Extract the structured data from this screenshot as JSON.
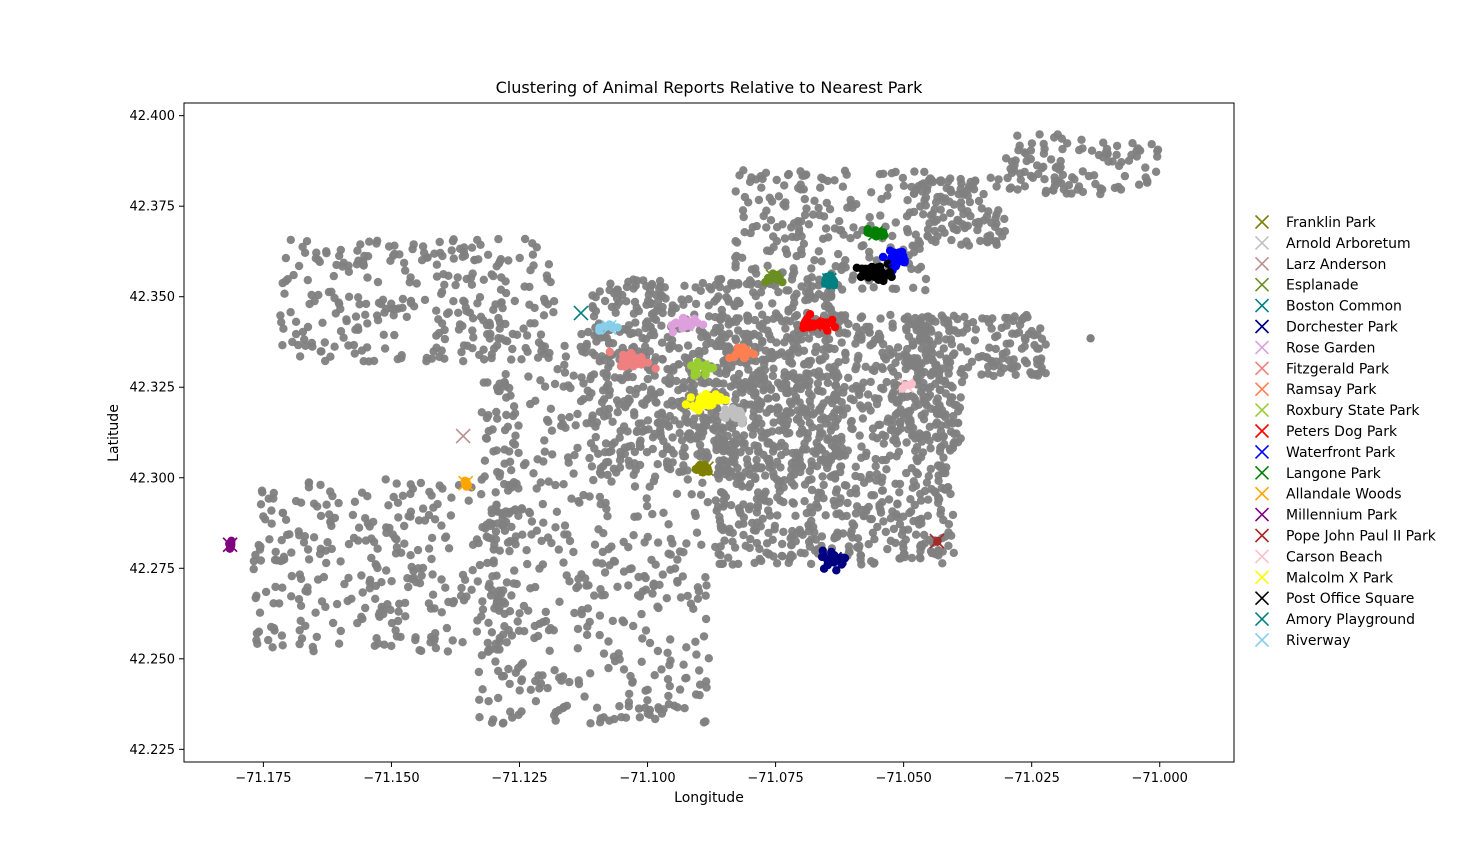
{
  "chart_data": {
    "type": "scatter",
    "title": "Clustering of Animal Reports Relative to Nearest Park",
    "xlabel": "Longitude",
    "ylabel": "Latitude",
    "xlim": [
      -71.1905,
      -70.9855
    ],
    "ylim": [
      42.2215,
      42.4035
    ],
    "xticks": [
      -71.175,
      -71.15,
      -71.125,
      -71.1,
      -71.075,
      -71.05,
      -71.025,
      -71.0
    ],
    "xtick_labels": [
      "−71.175",
      "−71.150",
      "−71.125",
      "−71.100",
      "−71.075",
      "−71.050",
      "−71.025",
      "−71.000"
    ],
    "yticks": [
      42.225,
      42.25,
      42.275,
      42.3,
      42.325,
      42.35,
      42.375,
      42.4
    ],
    "ytick_labels": [
      "42.225",
      "42.250",
      "42.275",
      "42.300",
      "42.325",
      "42.350",
      "42.375",
      "42.400"
    ],
    "grid": false,
    "legend_position": "right",
    "background_points": {
      "color": "#808080",
      "regions": [
        {
          "lon": [
            -71.172,
            -71.118
          ],
          "lat": [
            42.332,
            42.366
          ],
          "n": 280
        },
        {
          "lon": [
            -71.177,
            -71.125
          ],
          "lat": [
            42.252,
            42.3
          ],
          "n": 330
        },
        {
          "lon": [
            -71.133,
            -71.088
          ],
          "lat": [
            42.232,
            42.34
          ],
          "n": 560
        },
        {
          "lon": [
            -71.112,
            -71.062
          ],
          "lat": [
            42.3,
            42.355
          ],
          "n": 650
        },
        {
          "lon": [
            -71.087,
            -71.04
          ],
          "lat": [
            42.276,
            42.345
          ],
          "n": 900
        },
        {
          "lon": [
            -71.083,
            -71.045
          ],
          "lat": [
            42.35,
            42.385
          ],
          "n": 220
        },
        {
          "lon": [
            -71.05,
            -71.022
          ],
          "lat": [
            42.328,
            42.345
          ],
          "n": 160
        },
        {
          "lon": [
            -71.047,
            -71.03
          ],
          "lat": [
            42.364,
            42.383
          ],
          "n": 110
        },
        {
          "lon": [
            -71.03,
            -71.0
          ],
          "lat": [
            42.378,
            42.395
          ],
          "n": 110
        },
        {
          "lon": [
            -71.052,
            -71.038
          ],
          "lat": [
            42.308,
            42.327
          ],
          "n": 60
        }
      ]
    },
    "parks": [
      {
        "name": "Franklin Park",
        "color": "#808000",
        "lon": -71.0885,
        "lat": 42.3025,
        "spread": [
          0.002,
          0.0016
        ],
        "n": 10
      },
      {
        "name": "Arnold Arboretum",
        "color": "#c0c0c0",
        "lon": -71.0835,
        "lat": 42.3175,
        "spread": [
          0.0028,
          0.0022
        ],
        "n": 24
      },
      {
        "name": "Larz Anderson",
        "color": "#bc8f8f",
        "lon": -71.136,
        "lat": 42.3115,
        "spread": [
          0,
          0
        ],
        "n": 0
      },
      {
        "name": "Esplanade",
        "color": "#6b8e23",
        "lon": -71.0755,
        "lat": 42.3555,
        "spread": [
          0.0022,
          0.0014
        ],
        "n": 14
      },
      {
        "name": "Boston Common",
        "color": "#008080",
        "lon": -71.113,
        "lat": 42.3455,
        "spread": [
          0,
          0
        ],
        "n": 0
      },
      {
        "name": "Dorchester Park",
        "color": "#000080",
        "lon": -71.0635,
        "lat": 42.2775,
        "spread": [
          0.002,
          0.002
        ],
        "n": 24
      },
      {
        "name": "Rose Garden",
        "color": "#dda0dd",
        "lon": -71.0925,
        "lat": 42.3425,
        "spread": [
          0.0026,
          0.0018
        ],
        "n": 22
      },
      {
        "name": "Fitzgerald Park",
        "color": "#f08080",
        "lon": -71.1025,
        "lat": 42.3325,
        "spread": [
          0.0024,
          0.0018
        ],
        "n": 26
      },
      {
        "name": "Ramsay Park",
        "color": "#ff7f50",
        "lon": -71.0815,
        "lat": 42.3345,
        "spread": [
          0.0024,
          0.0015
        ],
        "n": 20
      },
      {
        "name": "Roxbury State Park",
        "color": "#9acd32",
        "lon": -71.0895,
        "lat": 42.3305,
        "spread": [
          0.0022,
          0.0018
        ],
        "n": 18
      },
      {
        "name": "Peters Dog Park",
        "color": "#ff0000",
        "lon": -71.0675,
        "lat": 42.3425,
        "spread": [
          0.0025,
          0.0018
        ],
        "n": 30
      },
      {
        "name": "Waterfront Park",
        "color": "#0000ff",
        "lon": -71.0515,
        "lat": 42.3605,
        "spread": [
          0.0018,
          0.002
        ],
        "n": 24
      },
      {
        "name": "Langone Park",
        "color": "#008000",
        "lon": -71.0555,
        "lat": 42.3675,
        "spread": [
          0.0018,
          0.0009
        ],
        "n": 14
      },
      {
        "name": "Allandale Woods",
        "color": "#ffa500",
        "lon": -71.1355,
        "lat": 42.2985,
        "spread": [
          0.0005,
          0.0012
        ],
        "n": 8
      },
      {
        "name": "Millennium Park",
        "color": "#800080",
        "lon": -71.1815,
        "lat": 42.2815,
        "spread": [
          0.0007,
          0.0012
        ],
        "n": 5
      },
      {
        "name": "Pope John Paul II Park",
        "color": "#a52a2a",
        "lon": -71.0435,
        "lat": 42.2825,
        "spread": [
          0.0004,
          0.0004
        ],
        "n": 2
      },
      {
        "name": "Carson Beach",
        "color": "#ffc0cb",
        "lon": -71.0495,
        "lat": 42.3255,
        "spread": [
          0.0014,
          0.0014
        ],
        "n": 5
      },
      {
        "name": "Malcolm X Park",
        "color": "#ffff00",
        "lon": -71.0885,
        "lat": 42.3215,
        "spread": [
          0.0024,
          0.0016
        ],
        "n": 45
      },
      {
        "name": "Post Office Square",
        "color": "#000000",
        "lon": -71.0555,
        "lat": 42.3565,
        "spread": [
          0.0025,
          0.0016
        ],
        "n": 45
      },
      {
        "name": "Amory Playground",
        "color": "#008080",
        "lon": -71.0645,
        "lat": 42.3545,
        "spread": [
          0.0012,
          0.0015
        ],
        "n": 14
      },
      {
        "name": "Riverway",
        "color": "#87ceeb",
        "lon": -71.1075,
        "lat": 42.3415,
        "spread": [
          0.0016,
          0.0009
        ],
        "n": 9
      }
    ],
    "extra_gray_points": [
      {
        "lon": -71.0135,
        "lat": 42.3385
      }
    ]
  }
}
